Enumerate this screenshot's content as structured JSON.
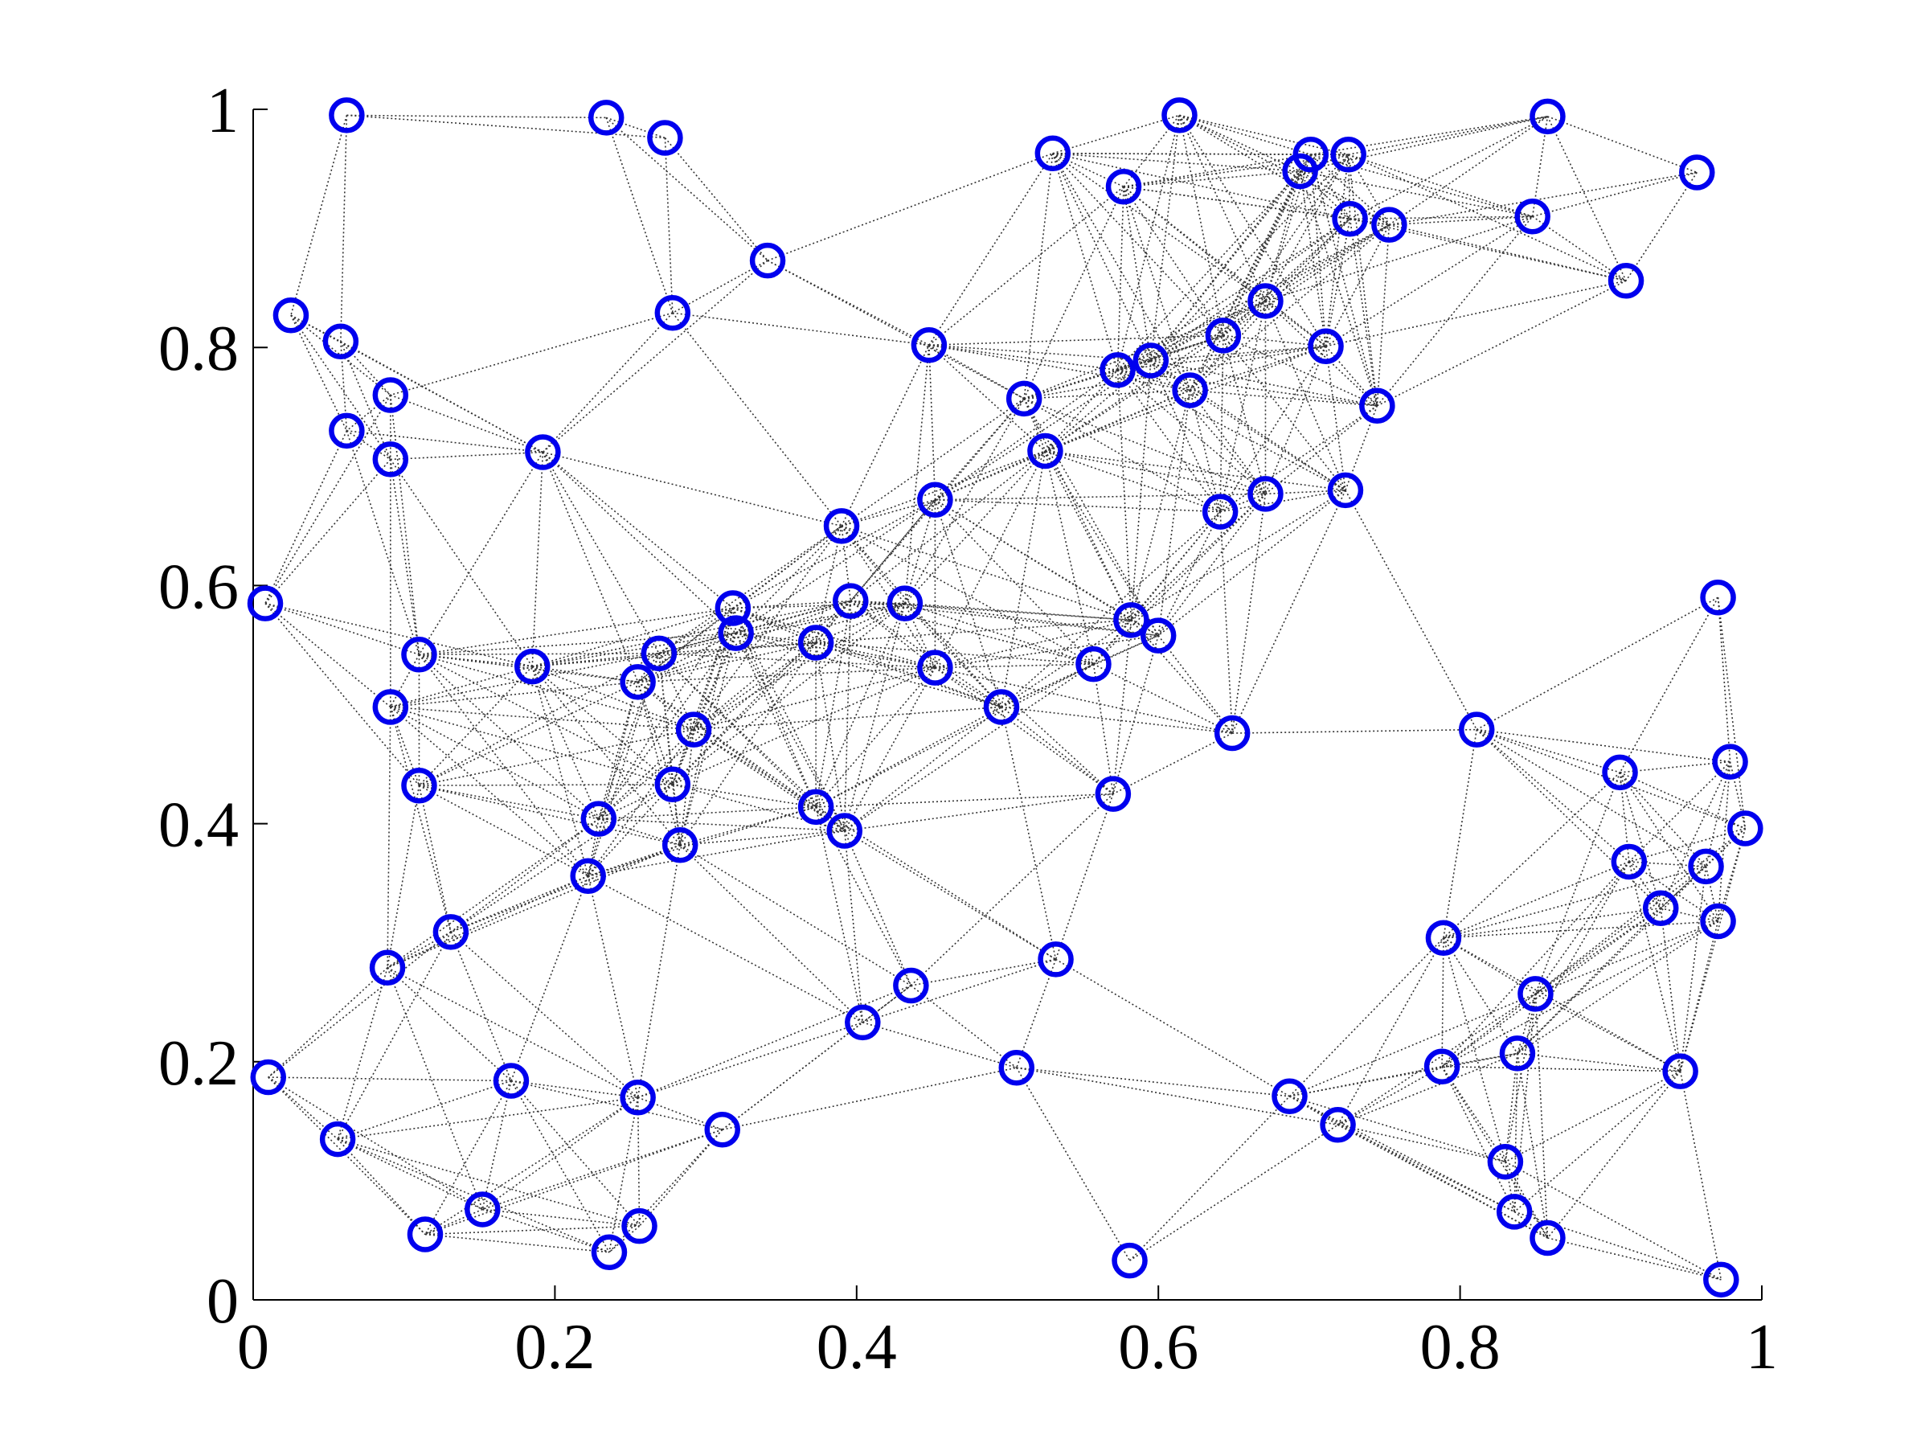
{
  "chart_data": {
    "type": "scatter",
    "x": [
      0.062,
      0.234,
      0.273,
      0.341,
      0.278,
      0.025,
      0.058,
      0.091,
      0.062,
      0.091,
      0.192,
      0.008,
      0.11,
      0.185,
      0.091,
      0.11,
      0.318,
      0.32,
      0.269,
      0.255,
      0.292,
      0.278,
      0.229,
      0.283,
      0.222,
      0.131,
      0.089,
      0.01,
      0.171,
      0.255,
      0.056,
      0.311,
      0.152,
      0.114,
      0.256,
      0.236,
      0.39,
      0.396,
      0.373,
      0.432,
      0.452,
      0.452,
      0.373,
      0.392,
      0.496,
      0.436,
      0.404,
      0.448,
      0.511,
      0.525,
      0.53,
      0.577,
      0.614,
      0.573,
      0.595,
      0.621,
      0.643,
      0.671,
      0.711,
      0.701,
      0.694,
      0.726,
      0.727,
      0.753,
      0.745,
      0.641,
      0.671,
      0.724,
      0.848,
      0.858,
      0.957,
      0.91,
      0.582,
      0.6,
      0.557,
      0.649,
      0.57,
      0.532,
      0.506,
      0.581,
      0.687,
      0.719,
      0.811,
      0.971,
      0.906,
      0.979,
      0.989,
      0.912,
      0.963,
      0.933,
      0.971,
      0.789,
      0.85,
      0.788,
      0.838,
      0.946,
      0.83,
      0.836,
      0.858,
      0.973
    ],
    "y": [
      0.995,
      0.993,
      0.976,
      0.873,
      0.829,
      0.827,
      0.805,
      0.76,
      0.73,
      0.706,
      0.712,
      0.585,
      0.542,
      0.532,
      0.498,
      0.432,
      0.581,
      0.56,
      0.543,
      0.519,
      0.479,
      0.433,
      0.404,
      0.382,
      0.356,
      0.309,
      0.279,
      0.187,
      0.184,
      0.17,
      0.135,
      0.143,
      0.076,
      0.055,
      0.062,
      0.04,
      0.65,
      0.587,
      0.552,
      0.585,
      0.672,
      0.531,
      0.414,
      0.394,
      0.498,
      0.264,
      0.233,
      0.802,
      0.757,
      0.713,
      0.963,
      0.935,
      0.995,
      0.781,
      0.789,
      0.764,
      0.81,
      0.839,
      0.801,
      0.962,
      0.948,
      0.962,
      0.908,
      0.903,
      0.751,
      0.662,
      0.677,
      0.68,
      0.91,
      0.994,
      0.947,
      0.856,
      0.571,
      0.558,
      0.534,
      0.476,
      0.425,
      0.286,
      0.195,
      0.033,
      0.171,
      0.147,
      0.479,
      0.59,
      0.443,
      0.452,
      0.396,
      0.368,
      0.364,
      0.329,
      0.318,
      0.304,
      0.257,
      0.196,
      0.207,
      0.192,
      0.116,
      0.074,
      0.052,
      0.017
    ],
    "color": "#0000ee",
    "xlim": [
      0,
      1
    ],
    "ylim": [
      0,
      1
    ],
    "xticks": [
      0,
      0.2,
      0.4,
      0.6,
      0.8,
      1
    ],
    "yticks": [
      0,
      0.2,
      0.4,
      0.6,
      0.8,
      1
    ]
  }
}
